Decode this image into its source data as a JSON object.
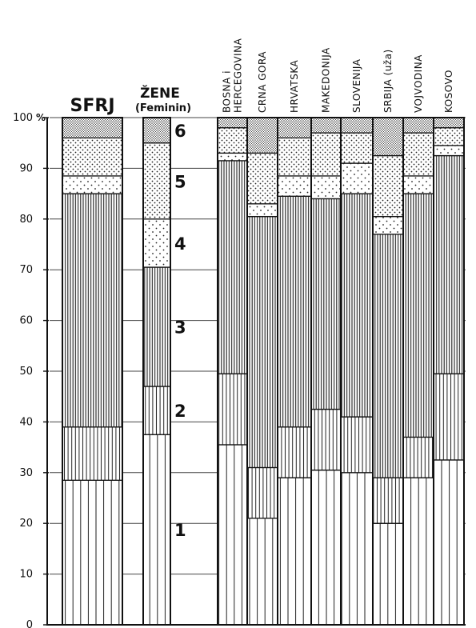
{
  "chart_data": {
    "type": "bar",
    "stacked": true,
    "percent_stacked": true,
    "y_unit": "%",
    "ylim": [
      0,
      100
    ],
    "y_ticks": [
      0,
      10,
      20,
      30,
      40,
      50,
      60,
      70,
      80,
      90,
      100
    ],
    "y_tick_labels": [
      "0",
      "10",
      "20",
      "30",
      "40",
      "50",
      "60",
      "70",
      "80",
      "90",
      "100"
    ],
    "grid": true,
    "segment_labels": [
      "1",
      "2",
      "3",
      "4",
      "5",
      "6"
    ],
    "segment_patterns": [
      "vertical-lines",
      "vertical-lines-dense",
      "vertical-lines-fine",
      "sparse-dots",
      "dots",
      "dense-dots"
    ],
    "bars": [
      {
        "label_lines": [
          "SFRJ"
        ],
        "values": [
          28.5,
          10.5,
          46,
          3.5,
          7.5,
          4
        ]
      },
      {
        "label_lines": [
          "ŽENE",
          "(Feminin)"
        ],
        "values": [
          37.5,
          9.5,
          23.5,
          9.5,
          15,
          5
        ]
      },
      {
        "label_lines": [
          "BOSNA i",
          "HERCEGOVINA"
        ],
        "values": [
          35.5,
          14,
          42,
          1.5,
          5,
          2
        ]
      },
      {
        "label_lines": [
          "CRNA GORA"
        ],
        "values": [
          21,
          10,
          49.5,
          2.5,
          10,
          7
        ]
      },
      {
        "label_lines": [
          "HRVATSKA"
        ],
        "values": [
          29,
          10,
          45.5,
          4,
          7.5,
          4
        ]
      },
      {
        "label_lines": [
          "MAKEDONIJA"
        ],
        "values": [
          30.5,
          12,
          41.5,
          4.5,
          8.5,
          3
        ]
      },
      {
        "label_lines": [
          "SLOVENIJA"
        ],
        "values": [
          30,
          11,
          44,
          6,
          6,
          3
        ]
      },
      {
        "label_lines": [
          "SRBIJA (uža)"
        ],
        "values": [
          20,
          9,
          48,
          3.5,
          12,
          7.5
        ]
      },
      {
        "label_lines": [
          "VOJVODINA"
        ],
        "values": [
          29,
          8,
          48,
          3.5,
          8.5,
          3
        ]
      },
      {
        "label_lines": [
          "KOSOVO"
        ],
        "values": [
          32.5,
          17,
          43,
          2,
          3.5,
          2
        ]
      }
    ]
  }
}
